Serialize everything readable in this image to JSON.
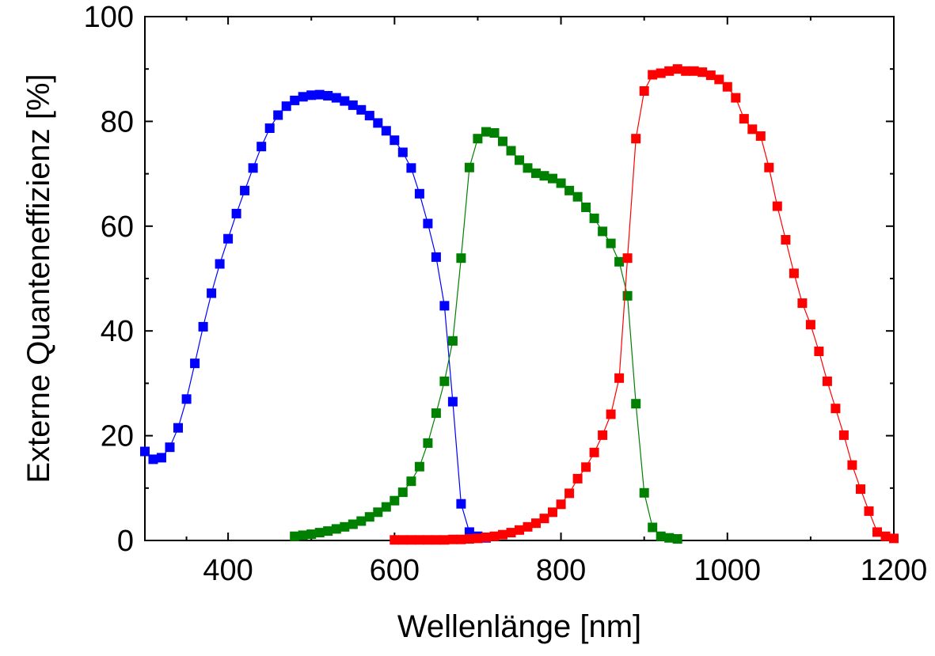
{
  "chart_data": {
    "type": "scatter",
    "xlabel": "Wellenlänge [nm]",
    "ylabel": "Externe Quanteneffizienz [%]",
    "xlim": [
      300,
      1200
    ],
    "ylim": [
      0,
      100
    ],
    "xticks": [
      400,
      600,
      800,
      1000,
      1200
    ],
    "yticks": [
      0,
      20,
      40,
      60,
      80,
      100
    ],
    "xtick_labels": [
      "400",
      "600",
      "800",
      "1000",
      "1200"
    ],
    "ytick_labels": [
      "0",
      "20",
      "40",
      "60",
      "80",
      "100"
    ],
    "grid": false,
    "legend": "none",
    "series": [
      {
        "color": "#0000ff",
        "x": [
          300,
          310,
          320,
          330,
          340,
          350,
          360,
          370,
          380,
          390,
          400,
          410,
          420,
          430,
          440,
          450,
          460,
          470,
          480,
          490,
          500,
          510,
          520,
          530,
          540,
          550,
          560,
          570,
          580,
          590,
          600,
          610,
          620,
          630,
          640,
          650,
          660,
          670,
          680,
          690,
          700,
          710
        ],
        "y": [
          17,
          15.5,
          15.8,
          17.8,
          21.5,
          27,
          33.8,
          40.8,
          47.2,
          52.8,
          57.6,
          62.4,
          66.8,
          71.1,
          75.2,
          78.7,
          81.2,
          82.9,
          84.0,
          84.7,
          85.0,
          85.1,
          84.9,
          84.5,
          83.9,
          83.1,
          82.2,
          81.1,
          79.7,
          78.2,
          76.4,
          74.1,
          71.1,
          66.2,
          60.5,
          54.1,
          44.8,
          26.5,
          7.0,
          1.6,
          0.8,
          0.5
        ]
      },
      {
        "color": "#008000",
        "x": [
          480,
          490,
          500,
          510,
          520,
          530,
          540,
          550,
          560,
          570,
          580,
          590,
          600,
          610,
          620,
          630,
          640,
          650,
          660,
          670,
          680,
          690,
          700,
          710,
          720,
          730,
          740,
          750,
          760,
          770,
          780,
          790,
          800,
          810,
          820,
          830,
          840,
          850,
          860,
          870,
          880,
          890,
          900,
          910,
          920,
          930,
          940
        ],
        "y": [
          0.8,
          1.0,
          1.2,
          1.5,
          1.8,
          2.2,
          2.6,
          3.1,
          3.7,
          4.5,
          5.4,
          6.4,
          7.6,
          9.2,
          11.3,
          14.1,
          18.6,
          24.3,
          30.4,
          38.1,
          53.9,
          71.2,
          76.7,
          78.0,
          77.8,
          76.2,
          74.4,
          72.6,
          71.1,
          70.1,
          69.6,
          69.1,
          68.2,
          66.8,
          65.6,
          63.6,
          61.5,
          59.0,
          56.7,
          53.2,
          46.7,
          26.1,
          9.1,
          2.5,
          0.8,
          0.5,
          0.3
        ]
      },
      {
        "color": "#ff0000",
        "x": [
          600,
          610,
          620,
          630,
          640,
          650,
          660,
          670,
          680,
          690,
          700,
          710,
          720,
          730,
          740,
          750,
          760,
          770,
          780,
          790,
          800,
          810,
          820,
          830,
          840,
          850,
          860,
          870,
          880,
          890,
          900,
          910,
          920,
          930,
          940,
          950,
          960,
          970,
          980,
          990,
          1000,
          1010,
          1020,
          1030,
          1040,
          1050,
          1060,
          1070,
          1080,
          1090,
          1100,
          1110,
          1120,
          1130,
          1140,
          1150,
          1160,
          1170,
          1180,
          1190,
          1200
        ],
        "y": [
          0.1,
          0.1,
          0.1,
          0.1,
          0.1,
          0.1,
          0.1,
          0.2,
          0.2,
          0.3,
          0.4,
          0.6,
          0.8,
          1.1,
          1.5,
          2.0,
          2.6,
          3.3,
          4.2,
          5.4,
          6.9,
          9.0,
          11.8,
          14.0,
          16.8,
          20.1,
          24.1,
          31.0,
          53.9,
          76.7,
          85.8,
          88.9,
          89.2,
          89.6,
          90.0,
          89.6,
          89.6,
          89.4,
          88.8,
          88.0,
          86.6,
          84.5,
          80.5,
          78.5,
          77.2,
          71.2,
          63.8,
          57.4,
          51.0,
          45.3,
          41.2,
          36.1,
          30.4,
          25.2,
          20.1,
          14.4,
          9.8,
          5.6,
          1.6,
          0.8,
          0.4
        ]
      }
    ]
  }
}
